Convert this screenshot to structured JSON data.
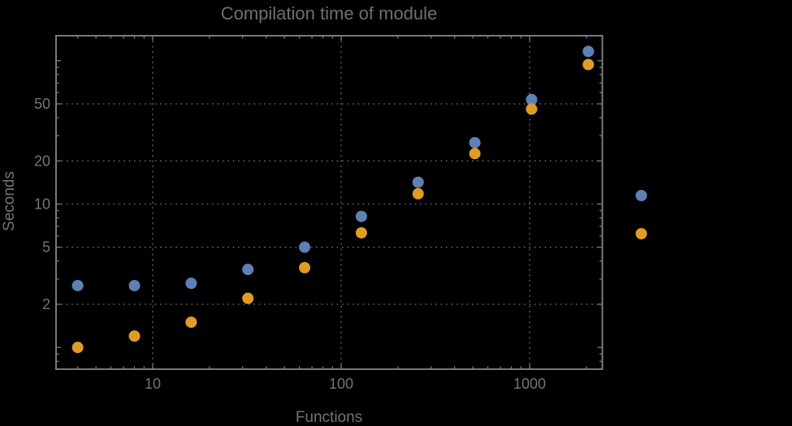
{
  "chart_data": {
    "type": "scatter",
    "scale": "log-log",
    "title": "Compilation time of module",
    "xlabel": "Functions",
    "ylabel": "Seconds",
    "x": [
      4,
      8,
      16,
      32,
      64,
      128,
      256,
      512,
      1024,
      2048
    ],
    "series": [
      {
        "name": "series-1-blue",
        "color": "#5E81B5",
        "values": [
          2.7,
          2.7,
          2.8,
          3.5,
          5.0,
          8.2,
          14.2,
          26.8,
          53.5,
          116
        ]
      },
      {
        "name": "series-2-orange",
        "color": "#E19C24",
        "values": [
          1.0,
          1.2,
          1.5,
          2.2,
          3.6,
          6.3,
          11.8,
          22.5,
          46,
          94
        ]
      }
    ],
    "xlim": [
      3.07,
      2430
    ],
    "ylim": [
      0.705,
      149.4
    ],
    "x_tick_labels": [
      "10",
      "100",
      "1000"
    ],
    "x_tick_values": [
      10,
      100,
      1000
    ],
    "y_tick_labels": [
      "2",
      "5",
      "10",
      "20",
      "50"
    ],
    "y_tick_values": [
      2,
      5,
      10,
      20,
      50
    ],
    "y_unlabeled_major_ticks": [
      1,
      100
    ],
    "grid": "dotted lines at labeled major ticks, both axes",
    "legend": {
      "position": "right-outside",
      "labels_visible": false,
      "entries": [
        {
          "marker": "dot",
          "color": "#5E81B5"
        },
        {
          "marker": "dot",
          "color": "#E19C24"
        }
      ]
    },
    "marker_radius_px": 7
  },
  "colors": {
    "background": "#000000",
    "frame": "#7a7a7a",
    "ticks": "#7a7a7a",
    "grid": "#5c5c5c",
    "tick_labels": "#747474",
    "title_text": "#6f6f6f"
  }
}
